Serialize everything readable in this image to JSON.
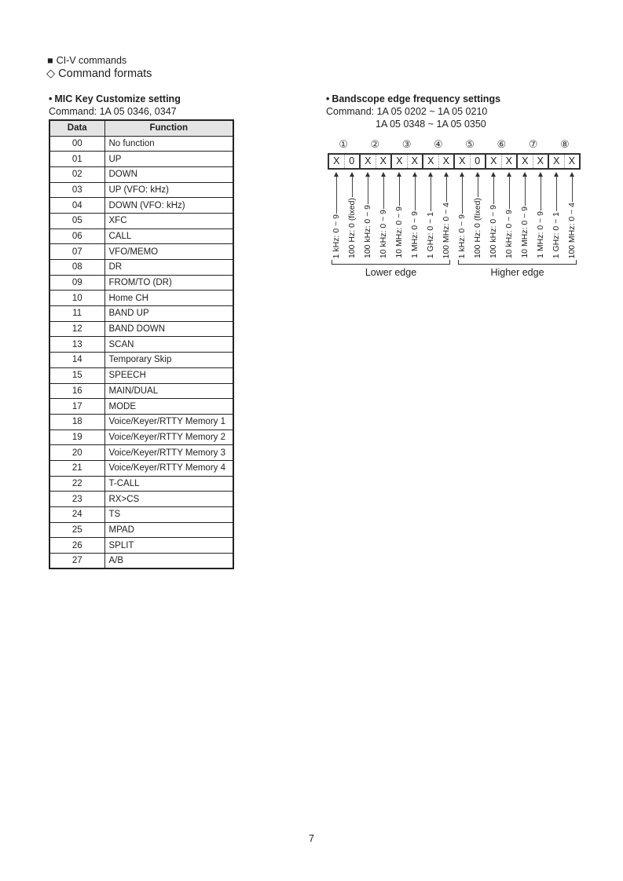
{
  "page": {
    "section_marker": "■",
    "section_title": "CI-V commands",
    "subsection_marker": "◇",
    "subsection_title": "Command formats",
    "page_number": "7"
  },
  "mic": {
    "bullet": "•",
    "title": "MIC Key Customize setting",
    "command": "Command: 1A 05 0346, 0347",
    "table": {
      "columns": [
        "Data",
        "Function"
      ],
      "rows": [
        [
          "00",
          "No function"
        ],
        [
          "01",
          "UP"
        ],
        [
          "02",
          "DOWN"
        ],
        [
          "03",
          "UP (VFO: kHz)"
        ],
        [
          "04",
          "DOWN (VFO: kHz)"
        ],
        [
          "05",
          "XFC"
        ],
        [
          "06",
          "CALL"
        ],
        [
          "07",
          "VFO/MEMO"
        ],
        [
          "08",
          "DR"
        ],
        [
          "09",
          "FROM/TO (DR)"
        ],
        [
          "10",
          "Home CH"
        ],
        [
          "11",
          "BAND UP"
        ],
        [
          "12",
          "BAND DOWN"
        ],
        [
          "13",
          "SCAN"
        ],
        [
          "14",
          "Temporary Skip"
        ],
        [
          "15",
          "SPEECH"
        ],
        [
          "16",
          "MAIN/DUAL"
        ],
        [
          "17",
          "MODE"
        ],
        [
          "18",
          "Voice/Keyer/RTTY Memory 1"
        ],
        [
          "19",
          "Voice/Keyer/RTTY Memory 2"
        ],
        [
          "20",
          "Voice/Keyer/RTTY Memory 3"
        ],
        [
          "21",
          "Voice/Keyer/RTTY Memory 4"
        ],
        [
          "22",
          "T-CALL"
        ],
        [
          "23",
          "RX>CS"
        ],
        [
          "24",
          "TS"
        ],
        [
          "25",
          "MPAD"
        ],
        [
          "26",
          "SPLIT"
        ],
        [
          "27",
          "A/B"
        ]
      ]
    }
  },
  "bandscope": {
    "bullet": "•",
    "title": "Bandscope edge frequency settings",
    "command_line1": "Command: 1A 05 0202 ~ 1A 05 0210",
    "command_line2": "1A 05 0348 ~ 1A 05 0350",
    "byte_markers": [
      "①",
      "②",
      "③",
      "④",
      "⑤",
      "⑥",
      "⑦",
      "⑧"
    ],
    "cells": [
      "X",
      "0",
      "X",
      "X",
      "X",
      "X",
      "X",
      "X",
      "X",
      "0",
      "X",
      "X",
      "X",
      "X",
      "X",
      "X"
    ],
    "cell_labels": [
      "1 kHz: 0 ~ 9",
      "100 Hz: 0 (fixed)",
      "100 kHz: 0 ~ 9",
      "10 kHz: 0 ~ 9",
      "10 MHz: 0 ~ 9",
      "1 MHz: 0 ~ 9",
      "1 GHz: 0 ~ 1",
      "100 MHz: 0 ~ 4",
      "1 kHz: 0 ~ 9",
      "100 Hz: 0 (fixed)",
      "100 kHz: 0 ~ 9",
      "10 kHz: 0 ~ 9",
      "10 MHz: 0 ~ 9",
      "1 MHz: 0 ~ 9",
      "1 GHz: 0 ~ 1",
      "100 MHz: 0 ~ 4"
    ],
    "group_labels": [
      "Lower edge",
      "Higher edge"
    ]
  }
}
